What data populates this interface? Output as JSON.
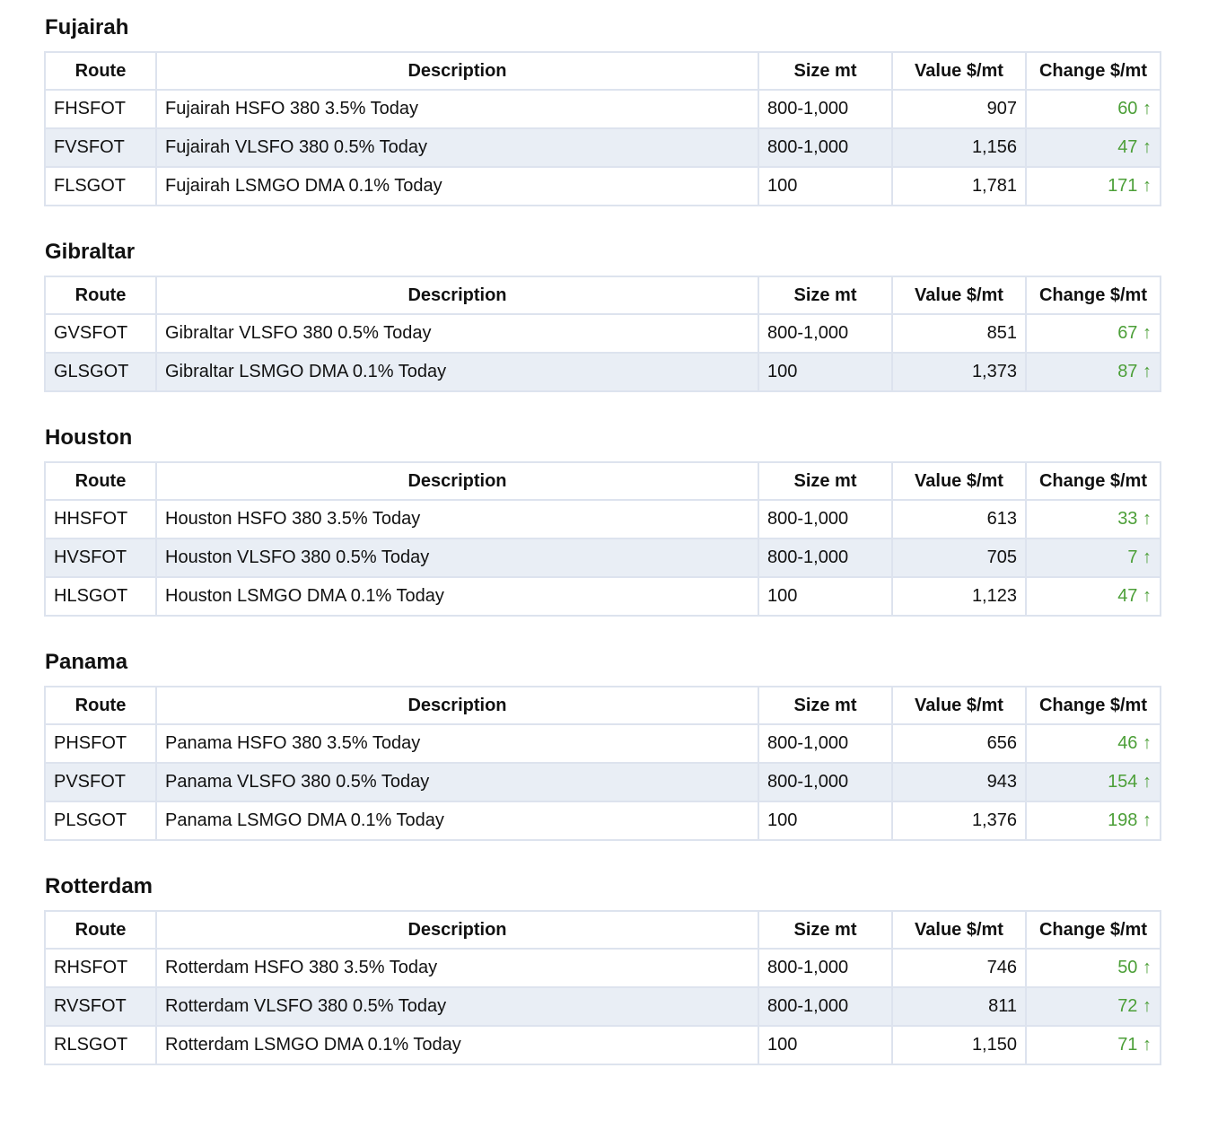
{
  "header": [
    "Route",
    "Description",
    "Size mt",
    "Value $/mt",
    "Change $/mt"
  ],
  "sections": [
    {
      "title": "Fujairah",
      "rows": [
        [
          "FHSFOT",
          "Fujairah HSFO 380 3.5% Today",
          "800-1,000",
          "907",
          "60 ↑"
        ],
        [
          "FVSFOT",
          "Fujairah VLSFO 380 0.5% Today",
          "800-1,000",
          "1,156",
          "47 ↑"
        ],
        [
          "FLSGOT",
          "Fujairah LSMGO DMA 0.1% Today",
          "100",
          "1,781",
          "171 ↑"
        ]
      ]
    },
    {
      "title": "Gibraltar",
      "rows": [
        [
          "GVSFOT",
          "Gibraltar VLSFO 380 0.5% Today",
          "800-1,000",
          "851",
          "67 ↑"
        ],
        [
          "GLSGOT",
          "Gibraltar LSMGO DMA 0.1% Today",
          "100",
          "1,373",
          "87 ↑"
        ]
      ]
    },
    {
      "title": "Houston",
      "rows": [
        [
          "HHSFOT",
          "Houston HSFO 380 3.5% Today",
          "800-1,000",
          "613",
          "33 ↑"
        ],
        [
          "HVSFOT",
          "Houston VLSFO 380 0.5% Today",
          "800-1,000",
          "705",
          "7 ↑"
        ],
        [
          "HLSGOT",
          "Houston LSMGO DMA 0.1% Today",
          "100",
          "1,123",
          "47 ↑"
        ]
      ]
    },
    {
      "title": "Panama",
      "rows": [
        [
          "PHSFOT",
          "Panama HSFO 380 3.5% Today",
          "800-1,000",
          "656",
          "46 ↑"
        ],
        [
          "PVSFOT",
          "Panama VLSFO 380 0.5% Today",
          "800-1,000",
          "943",
          "154 ↑"
        ],
        [
          "PLSGOT",
          "Panama LSMGO DMA 0.1% Today",
          "100",
          "1,376",
          "198 ↑"
        ]
      ]
    },
    {
      "title": "Rotterdam",
      "rows": [
        [
          "RHSFOT",
          "Rotterdam HSFO 380 3.5% Today",
          "800-1,000",
          "746",
          "50 ↑"
        ],
        [
          "RVSFOT",
          "Rotterdam VLSFO 380 0.5% Today",
          "800-1,000",
          "811",
          "72 ↑"
        ],
        [
          "RLSGOT",
          "Rotterdam LSMGO DMA 0.1% Today",
          "100",
          "1,150",
          "71 ↑"
        ]
      ]
    }
  ]
}
